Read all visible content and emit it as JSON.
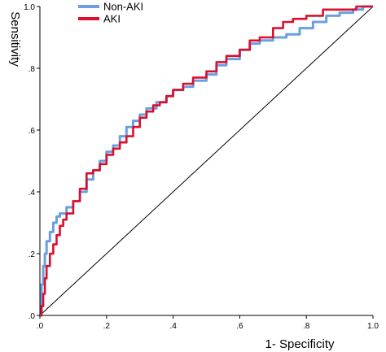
{
  "chart_data": {
    "type": "line",
    "xlabel": "1- Specificity",
    "ylabel": "Sensitivity",
    "xlim": [
      0,
      1
    ],
    "ylim": [
      0,
      1
    ],
    "x_ticks": [
      ".0",
      ".2",
      ".4",
      ".6",
      ".8",
      "1.0"
    ],
    "y_ticks": [
      ".0",
      ".2",
      ".4",
      ".6",
      ".8",
      "1.0"
    ],
    "legend_position": "top-left",
    "grid": false,
    "series": [
      {
        "name": "Non-AKI",
        "color": "#6aa0df",
        "x": [
          0.0,
          0.005,
          0.01,
          0.015,
          0.02,
          0.03,
          0.04,
          0.05,
          0.06,
          0.08,
          0.1,
          0.12,
          0.14,
          0.16,
          0.18,
          0.2,
          0.22,
          0.24,
          0.26,
          0.28,
          0.3,
          0.32,
          0.35,
          0.38,
          0.4,
          0.43,
          0.46,
          0.5,
          0.53,
          0.56,
          0.6,
          0.63,
          0.66,
          0.7,
          0.74,
          0.78,
          0.82,
          0.86,
          0.9,
          0.94,
          0.97,
          1.0
        ],
        "y": [
          0.0,
          0.1,
          0.16,
          0.2,
          0.24,
          0.27,
          0.3,
          0.32,
          0.33,
          0.35,
          0.37,
          0.4,
          0.44,
          0.47,
          0.5,
          0.53,
          0.55,
          0.58,
          0.61,
          0.63,
          0.65,
          0.67,
          0.69,
          0.71,
          0.73,
          0.74,
          0.76,
          0.78,
          0.81,
          0.83,
          0.86,
          0.88,
          0.89,
          0.9,
          0.91,
          0.93,
          0.95,
          0.97,
          0.98,
          0.99,
          1.0,
          1.0
        ]
      },
      {
        "name": "AKI",
        "color": "#d8102e",
        "x": [
          0.0,
          0.005,
          0.01,
          0.015,
          0.02,
          0.03,
          0.04,
          0.05,
          0.06,
          0.07,
          0.08,
          0.1,
          0.12,
          0.14,
          0.16,
          0.18,
          0.2,
          0.22,
          0.24,
          0.26,
          0.28,
          0.3,
          0.32,
          0.34,
          0.36,
          0.38,
          0.4,
          0.43,
          0.46,
          0.5,
          0.53,
          0.56,
          0.6,
          0.63,
          0.66,
          0.7,
          0.73,
          0.76,
          0.8,
          0.85,
          0.9,
          0.95,
          1.0
        ],
        "y": [
          0.0,
          0.03,
          0.07,
          0.12,
          0.16,
          0.2,
          0.23,
          0.26,
          0.29,
          0.31,
          0.33,
          0.37,
          0.41,
          0.46,
          0.47,
          0.49,
          0.52,
          0.54,
          0.56,
          0.58,
          0.61,
          0.64,
          0.66,
          0.68,
          0.69,
          0.71,
          0.73,
          0.75,
          0.77,
          0.79,
          0.82,
          0.84,
          0.86,
          0.89,
          0.9,
          0.93,
          0.95,
          0.96,
          0.97,
          0.99,
          0.99,
          1.0,
          1.0
        ]
      }
    ],
    "reference_line": {
      "x": [
        0,
        1
      ],
      "y": [
        0,
        1
      ],
      "color": "#000000"
    }
  }
}
